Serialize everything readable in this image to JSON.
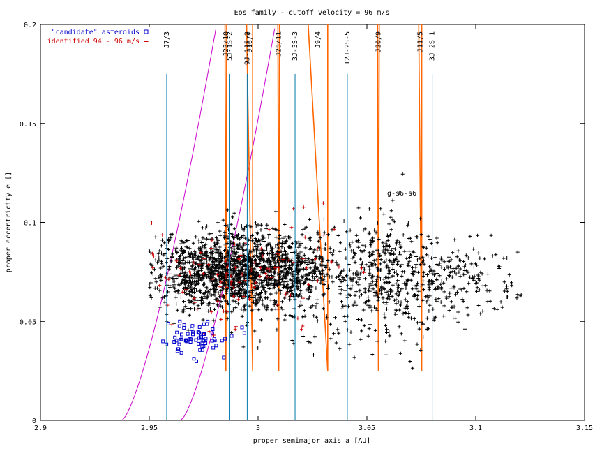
{
  "chart_data": {
    "type": "scatter",
    "title": "Eos family - cutoff velocity = 96 m/s",
    "xlabel": "proper semimajor axis a [AU]",
    "ylabel": "proper eccentricity e []",
    "xlim": [
      2.9,
      3.15
    ],
    "ylim": [
      0,
      0.2
    ],
    "x_ticks": [
      2.9,
      2.95,
      3.0,
      3.05,
      3.1,
      3.15
    ],
    "x_tick_labels": [
      "2.9",
      "2.95",
      "3",
      "3.05",
      "3.1",
      "3.15"
    ],
    "y_ticks": [
      0,
      0.05,
      0.1,
      0.15,
      0.2
    ],
    "y_tick_labels": [
      "0",
      "0.05",
      "0.1",
      "0.15",
      "0.2"
    ],
    "grid": false,
    "legend_position": "top-left",
    "legend": [
      {
        "label": "\"candidate\" asteroids",
        "marker": "square",
        "color": "#0000cc"
      },
      {
        "label": "identified 94 - 96 m/s",
        "marker": "plus",
        "color": "#cc0000"
      }
    ],
    "resonances": [
      {
        "label": "J7/3",
        "a": 2.958
      },
      {
        "label": "5J-1S-2",
        "a": 2.987
      },
      {
        "label": "9J-11S-2",
        "a": 2.995
      },
      {
        "label": "3J-3S-3",
        "a": 3.017
      },
      {
        "label": "12J-2S-5",
        "a": 3.041
      },
      {
        "label": "3J-2S-1",
        "a": 3.08
      }
    ],
    "orange_resonances": [
      {
        "label": "J23/10",
        "a_top": 2.9852,
        "a_bottom": 2.9852,
        "e_min": 0.025
      },
      {
        "label": "J16/7",
        "a_top": 2.9961,
        "a_bottom": 2.9975,
        "e_min": 0.025
      },
      {
        "label": "J25/11",
        "a_top": 3.0095,
        "a_bottom": 3.0095,
        "e_min": 0.025
      },
      {
        "label": "J9/4",
        "a_top": 3.0275,
        "a_bottom": 3.032,
        "e_min": 0.025
      },
      {
        "label": "J20/9",
        "a_top": 3.0553,
        "a_bottom": 3.0553,
        "e_min": 0.025
      },
      {
        "label": "J11/5",
        "a_top": 3.0745,
        "a_bottom": 3.0752,
        "e_min": 0.025
      }
    ],
    "secular_label": "g-s6-s6",
    "clusters": {
      "black_plus": [
        {
          "a": 2.985,
          "e": 0.075,
          "sa": 0.016,
          "se": 0.01,
          "n": 1300
        },
        {
          "a": 3.015,
          "e": 0.077,
          "sa": 0.012,
          "se": 0.01,
          "n": 500
        },
        {
          "a": 3.06,
          "e": 0.075,
          "sa": 0.012,
          "se": 0.014,
          "n": 350
        },
        {
          "a": 3.09,
          "e": 0.07,
          "sa": 0.013,
          "se": 0.01,
          "n": 200
        },
        {
          "a": 3.045,
          "e": 0.06,
          "sa": 0.02,
          "se": 0.015,
          "n": 150
        }
      ],
      "blue_square": [
        {
          "a": 2.972,
          "e": 0.041,
          "sa": 0.007,
          "se": 0.005,
          "n": 70
        }
      ],
      "red_plus": [
        {
          "a": 2.99,
          "e": 0.07,
          "sa": 0.025,
          "se": 0.012,
          "n": 120
        }
      ]
    }
  }
}
